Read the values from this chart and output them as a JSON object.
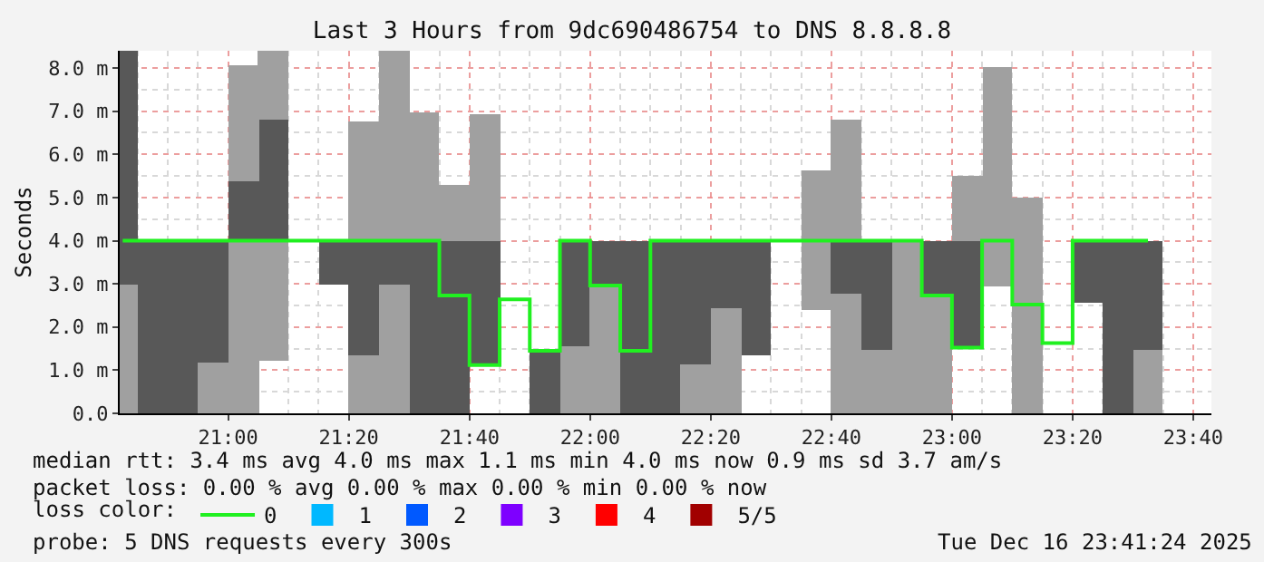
{
  "chart_data": {
    "type": "bar",
    "title": "Last 3 Hours from 9dc690486754 to DNS 8.8.8.8",
    "ylabel": "Seconds",
    "legend_title": "loss color:",
    "legend": "bottom",
    "grid": true,
    "x": [
      20.7083,
      20.7917,
      20.875,
      20.9583,
      21.0417,
      21.125,
      21.2083,
      21.2917,
      21.375,
      21.4583,
      21.5417,
      21.625,
      21.7083,
      21.7917,
      21.875,
      21.9583,
      22.0417,
      22.125,
      22.2083,
      22.2917,
      22.375,
      22.4583,
      22.5417,
      22.625,
      22.7083,
      22.7917,
      22.875,
      22.9583,
      23.0417,
      23.125,
      23.2083,
      23.2917,
      23.375,
      23.4583,
      23.5417
    ],
    "xlim": [
      20.7,
      23.717
    ],
    "xticks": [
      {
        "value": 21,
        "label": "21:00"
      },
      {
        "value": 21.3333,
        "label": "21:20"
      },
      {
        "value": 21.6667,
        "label": "21:40"
      },
      {
        "value": 22,
        "label": "22:00"
      },
      {
        "value": 22.3333,
        "label": "22:20"
      },
      {
        "value": 22.6667,
        "label": "22:40"
      },
      {
        "value": 23,
        "label": "23:00"
      },
      {
        "value": 23.3333,
        "label": "23:20"
      },
      {
        "value": 23.6667,
        "label": "23:40"
      }
    ],
    "ylim": [
      0,
      8.4
    ],
    "yticks": [
      {
        "value": 0,
        "label": "0.0"
      },
      {
        "value": 1,
        "label": "1.0 m"
      },
      {
        "value": 2,
        "label": "2.0 m"
      },
      {
        "value": 3,
        "label": "3.0 m"
      },
      {
        "value": 4,
        "label": "4.0 m"
      },
      {
        "value": 5,
        "label": "5.0 m"
      },
      {
        "value": 6,
        "label": "6.0 m"
      },
      {
        "value": 7,
        "label": "7.0 m"
      },
      {
        "value": 8,
        "label": "8.0 m"
      }
    ],
    "series": [
      {
        "base": [
          0,
          0,
          0,
          0,
          0,
          1.21,
          null,
          3.0,
          0,
          0,
          0,
          0,
          1.12,
          null,
          0,
          0,
          0,
          0,
          0,
          0,
          0,
          1.35,
          null,
          2.39,
          0,
          0,
          0,
          0,
          1.52,
          2.96,
          0,
          null,
          2.57,
          0,
          0
        ],
        "values": [
          3.0,
          4.0,
          4.0,
          1.17,
          4.0,
          2.79,
          null,
          1.0,
          1.35,
          3.0,
          4.0,
          4.0,
          2.88,
          null,
          1.45,
          1.56,
          2.96,
          4.0,
          4.0,
          1.13,
          2.43,
          2.65,
          null,
          3.22,
          2.77,
          1.45,
          4.0,
          2.73,
          2.48,
          5.07,
          5.01,
          null,
          1.43,
          4.0,
          1.45
        ],
        "colors": [
          "#a0a0a0",
          "#585858",
          "#585858",
          "#a0a0a0",
          "#a0a0a0",
          "#a0a0a0",
          null,
          "#585858",
          "#a0a0a0",
          "#a0a0a0",
          "#585858",
          "#585858",
          "#585858",
          null,
          "#585858",
          "#a0a0a0",
          "#a0a0a0",
          "#585858",
          "#585858",
          "#a0a0a0",
          "#a0a0a0",
          "#585858",
          null,
          "#a0a0a0",
          "#a0a0a0",
          "#a0a0a0",
          "#a0a0a0",
          "#a0a0a0",
          "#585858",
          "#a0a0a0",
          "#a0a0a0",
          null,
          "#585858",
          "#585858",
          "#a0a0a0"
        ]
      },
      {
        "base": [
          3.0,
          null,
          null,
          1.17,
          4.0,
          4.0,
          null,
          null,
          1.35,
          3.0,
          4.0,
          4.0,
          4.0,
          null,
          null,
          1.56,
          2.96,
          null,
          null,
          1.13,
          2.43,
          null,
          null,
          null,
          2.77,
          1.45,
          null,
          2.73,
          4.0,
          null,
          null,
          null,
          null,
          null,
          1.45
        ],
        "values": [
          5.4,
          null,
          null,
          2.83,
          1.36,
          2.82,
          null,
          null,
          2.65,
          1.0,
          2.96,
          1.29,
          2.93,
          null,
          null,
          2.44,
          1.04,
          null,
          null,
          2.87,
          1.57,
          null,
          null,
          null,
          1.23,
          2.55,
          null,
          1.27,
          1.52,
          null,
          null,
          null,
          null,
          null,
          2.55
        ],
        "colors": [
          "#585858",
          null,
          null,
          "#585858",
          "#585858",
          "#585858",
          null,
          null,
          "#585858",
          "#585858",
          "#a0a0a0",
          "#a0a0a0",
          "#a0a0a0",
          null,
          null,
          "#585858",
          "#585858",
          null,
          null,
          "#585858",
          "#585858",
          null,
          null,
          null,
          "#585858",
          "#585858",
          null,
          "#585858",
          "#a0a0a0",
          null,
          null,
          null,
          null,
          null,
          "#585858"
        ]
      },
      {
        "base": [
          null,
          null,
          null,
          null,
          5.36,
          6.82,
          null,
          null,
          4.0,
          4.0,
          null,
          null,
          null,
          null,
          null,
          null,
          null,
          null,
          null,
          null,
          null,
          null,
          null,
          null,
          4.0,
          null,
          null,
          null,
          null,
          null,
          null,
          null,
          null,
          null,
          null
        ],
        "values": [
          null,
          null,
          null,
          null,
          2.72,
          1.58,
          null,
          null,
          2.75,
          4.4,
          null,
          null,
          null,
          null,
          null,
          null,
          null,
          null,
          null,
          null,
          null,
          null,
          null,
          null,
          2.82,
          null,
          null,
          null,
          null,
          null,
          null,
          null,
          null,
          null,
          null
        ],
        "colors": [
          null,
          null,
          null,
          null,
          "#a0a0a0",
          "#a0a0a0",
          null,
          null,
          "#a0a0a0",
          "#a0a0a0",
          null,
          null,
          null,
          null,
          null,
          null,
          null,
          null,
          null,
          null,
          null,
          null,
          null,
          null,
          "#a0a0a0",
          null,
          null,
          null,
          null,
          null,
          null,
          null,
          null,
          null,
          null
        ]
      },
      {
        "type": "step",
        "name": "0",
        "color": "#20f020",
        "values": [
          4.0,
          4.0,
          4.0,
          4.0,
          4.0,
          4.0,
          4.0,
          4.0,
          4.0,
          4.0,
          4.0,
          2.73,
          1.12,
          2.64,
          1.45,
          4.0,
          2.96,
          1.45,
          4.0,
          4.0,
          4.0,
          4.0,
          4.0,
          4.0,
          4.0,
          4.0,
          4.0,
          2.73,
          1.52,
          4.0,
          2.52,
          1.63,
          4.0,
          4.0,
          4.0
        ]
      },
      {
        "type": "bar",
        "name": "1",
        "color": "#00b8ff",
        "values": [
          null,
          null,
          null,
          null,
          null,
          null,
          null,
          null,
          null,
          null,
          null,
          null,
          null,
          null,
          null,
          null,
          null,
          null,
          null,
          null,
          null,
          null,
          null,
          null,
          null,
          null,
          null,
          null,
          null,
          null,
          null,
          null,
          null,
          null,
          null
        ]
      },
      {
        "type": "bar",
        "name": "2",
        "color": "#0059ff",
        "values": [
          null,
          null,
          null,
          null,
          null,
          null,
          null,
          null,
          null,
          null,
          null,
          null,
          null,
          null,
          null,
          null,
          null,
          null,
          null,
          null,
          null,
          null,
          null,
          null,
          null,
          null,
          null,
          null,
          null,
          null,
          null,
          null,
          null,
          null,
          null
        ]
      },
      {
        "type": "bar",
        "name": "3",
        "color": "#7e00ff",
        "values": [
          null,
          null,
          null,
          null,
          null,
          null,
          null,
          null,
          null,
          null,
          null,
          null,
          null,
          null,
          null,
          null,
          null,
          null,
          null,
          null,
          null,
          null,
          null,
          null,
          null,
          null,
          null,
          null,
          null,
          null,
          null,
          null,
          null,
          null,
          null
        ]
      },
      {
        "type": "bar",
        "name": "4",
        "color": "#ff0000",
        "values": [
          null,
          null,
          null,
          null,
          null,
          null,
          null,
          null,
          null,
          null,
          null,
          null,
          null,
          null,
          null,
          null,
          null,
          null,
          null,
          null,
          null,
          null,
          null,
          null,
          null,
          null,
          null,
          null,
          null,
          null,
          null,
          null,
          null,
          null,
          null
        ]
      },
      {
        "type": "bar",
        "name": "5/5",
        "color": "#a10000",
        "values": [
          null,
          null,
          null,
          null,
          null,
          null,
          null,
          null,
          null,
          null,
          null,
          null,
          null,
          null,
          null,
          null,
          null,
          null,
          null,
          null,
          null,
          null,
          null,
          null,
          null,
          null,
          null,
          null,
          null,
          null,
          null,
          null,
          null,
          null,
          null
        ]
      }
    ],
    "annotations": [
      "median rtt: 3.4 ms avg 4.0 ms max 1.1 ms min 4.0 ms now 0.9 ms sd 3.7 am/s",
      "packet loss: 0.00 % avg 0.00 % max 0.00 % min 0.00 % now",
      "probe: 5 DNS requests every 300s",
      "Tue Dec 16 23:41:24 2025"
    ]
  }
}
